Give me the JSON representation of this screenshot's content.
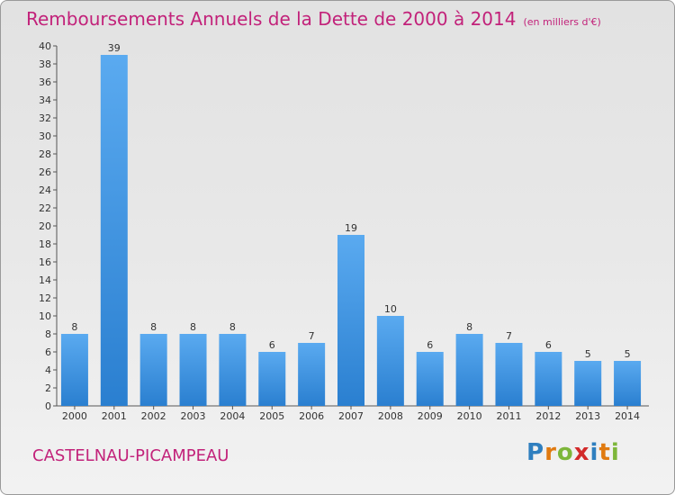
{
  "title": "Remboursements Annuels de la Dette de 2000 à 2014",
  "title_unit": "(en milliers d'€)",
  "commune": "CASTELNAU-PICAMPEAU",
  "logo": {
    "letters": [
      "P",
      "r",
      "o",
      "x",
      "i",
      "t",
      "i"
    ],
    "colors": [
      "#2f7fbf",
      "#e07a10",
      "#7db63a",
      "#d22a2a",
      "#2f7fbf",
      "#e07a10",
      "#7db63a"
    ]
  },
  "colors": {
    "title": "#c2227a",
    "bar_light": "#5aaaf0",
    "bar_dark": "#2a7fd0"
  },
  "chart_data": {
    "type": "bar",
    "title": "Remboursements Annuels de la Dette de 2000 à 2014",
    "categories": [
      "2000",
      "2001",
      "2002",
      "2003",
      "2004",
      "2005",
      "2006",
      "2007",
      "2008",
      "2009",
      "2010",
      "2011",
      "2012",
      "2013",
      "2014"
    ],
    "values": [
      8,
      39,
      8,
      8,
      8,
      6,
      7,
      19,
      10,
      6,
      8,
      7,
      6,
      5,
      5
    ],
    "ylim": [
      0,
      40
    ],
    "yticks": [
      0,
      2,
      4,
      6,
      8,
      10,
      12,
      14,
      16,
      18,
      20,
      22,
      24,
      26,
      28,
      30,
      32,
      34,
      36,
      38,
      40
    ],
    "grid": false,
    "legend": "none"
  }
}
